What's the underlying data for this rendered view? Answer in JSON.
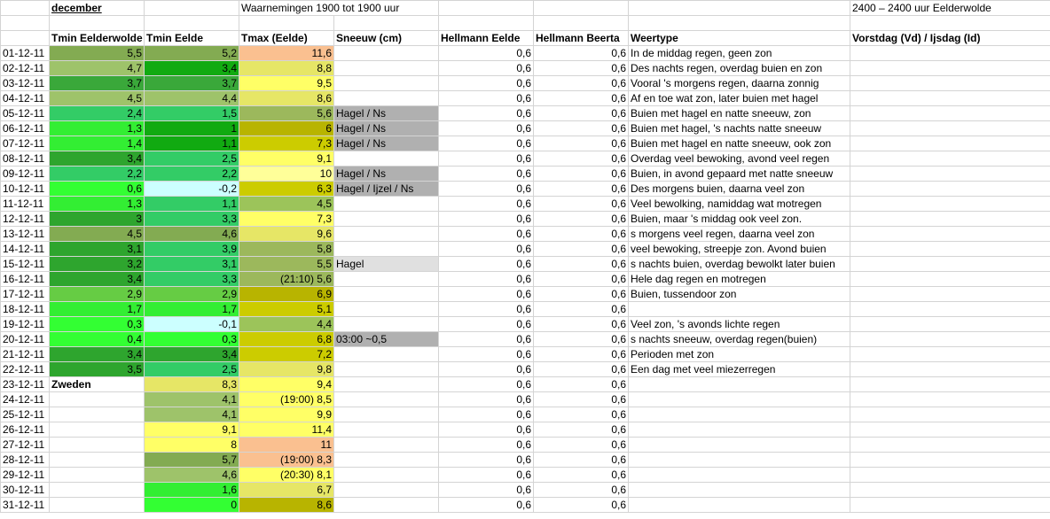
{
  "header": {
    "month": "december",
    "range": "Waarnemingen 1900 tot 1900 uur",
    "range_right": "2400 – 2400 uur Eelderwolde"
  },
  "table": {
    "columns": [
      "Tmin Eelderwolde",
      "Tmin Eelde",
      "Tmax (Eelde)",
      "Sneeuw (cm)",
      "Hellmann Eelde",
      "Hellmann Beerta",
      "Weertype",
      "Vorstdag (Vd) / Ijsdag (Id)"
    ],
    "rows": [
      {
        "date": "01-12-11",
        "tmin_eelderwolde": "5,5",
        "tmin_eelde": "5,2",
        "tmax": "11,6",
        "hellmann_eelde": "0,6",
        "hellmann_beerta": "0,6",
        "weertype": "In de middag regen, geen zon"
      },
      {
        "date": "02-12-11",
        "tmin_eelderwolde": "4,7",
        "tmin_eelde": "3,4",
        "tmax": "8,8",
        "hellmann_eelde": "0,6",
        "hellmann_beerta": "0,6",
        "weertype": "Des nachts regen, overdag buien en zon"
      },
      {
        "date": "03-12-11",
        "tmin_eelderwolde": "3,7",
        "tmin_eelde": "3,7",
        "tmax": "9,5",
        "hellmann_eelde": "0,6",
        "hellmann_beerta": "0,6",
        "weertype": "Vooral 's morgens regen, daarna zonnig"
      },
      {
        "date": "04-12-11",
        "tmin_eelderwolde": "4,5",
        "tmin_eelde": "4,4",
        "tmax": "8,6",
        "hellmann_eelde": "0,6",
        "hellmann_beerta": "0,6",
        "weertype": "Af en toe wat zon, later buien met hagel"
      },
      {
        "date": "05-12-11",
        "tmin_eelderwolde": "2,4",
        "tmin_eelde": "1,5",
        "tmax": "5,6",
        "sneeuw": "Hagel / Ns",
        "hellmann_eelde": "0,6",
        "hellmann_beerta": "0,6",
        "weertype": "Buien met hagel en natte sneeuw, zon"
      },
      {
        "date": "06-12-11",
        "tmin_eelderwolde": "1,3",
        "tmin_eelde": "1",
        "tmax": "6",
        "sneeuw": "Hagel / Ns",
        "hellmann_eelde": "0,6",
        "hellmann_beerta": "0,6",
        "weertype": "Buien met hagel, 's nachts natte sneeuw"
      },
      {
        "date": "07-12-11",
        "tmin_eelderwolde": "1,4",
        "tmin_eelde": "1,1",
        "tmax": "7,3",
        "sneeuw": "Hagel / Ns",
        "hellmann_eelde": "0,6",
        "hellmann_beerta": "0,6",
        "weertype": "Buien met hagel en natte sneeuw, ook zon"
      },
      {
        "date": "08-12-11",
        "tmin_eelderwolde": "3,4",
        "tmin_eelde": "2,5",
        "tmax": "9,1",
        "hellmann_eelde": "0,6",
        "hellmann_beerta": "0,6",
        "weertype": "Overdag veel bewoking, avond veel regen"
      },
      {
        "date": "09-12-11",
        "tmin_eelderwolde": "2,2",
        "tmin_eelde": "2,2",
        "tmax": "10",
        "sneeuw": "Hagel / Ns",
        "hellmann_eelde": "0,6",
        "hellmann_beerta": "0,6",
        "weertype": "Buien, in avond gepaard met natte sneeuw"
      },
      {
        "date": "10-12-11",
        "tmin_eelderwolde": "0,6",
        "tmin_eelde": "-0,2",
        "tmax": "6,3",
        "sneeuw": "Hagel / Ijzel / Ns",
        "hellmann_eelde": "0,6",
        "hellmann_beerta": "0,6",
        "weertype": "Des morgens buien, daarna veel zon"
      },
      {
        "date": "11-12-11",
        "tmin_eelderwolde": "1,3",
        "tmin_eelde": "1,1",
        "tmax": "4,5",
        "hellmann_eelde": "0,6",
        "hellmann_beerta": "0,6",
        "weertype": "Veel bewolking, namiddag wat motregen"
      },
      {
        "date": "12-12-11",
        "tmin_eelderwolde": "3",
        "tmin_eelde": "3,3",
        "tmax": "7,3",
        "hellmann_eelde": "0,6",
        "hellmann_beerta": "0,6",
        "weertype": "Buien, maar 's middag ook veel zon."
      },
      {
        "date": "13-12-11",
        "tmin_eelderwolde": "4,5",
        "tmin_eelde": "4,6",
        "tmax": "9,6",
        "hellmann_eelde": "0,6",
        "hellmann_beerta": "0,6",
        "weertype": "s morgens veel regen, daarna veel zon"
      },
      {
        "date": "14-12-11",
        "tmin_eelderwolde": "3,1",
        "tmin_eelde": "3,9",
        "tmax": "5,8",
        "hellmann_eelde": "0,6",
        "hellmann_beerta": "0,6",
        "weertype": "veel bewoking, streepje zon. Avond buien"
      },
      {
        "date": "15-12-11",
        "tmin_eelderwolde": "3,2",
        "tmin_eelde": "3,1",
        "tmax": "5,5",
        "sneeuw": "Hagel",
        "hellmann_eelde": "0,6",
        "hellmann_beerta": "0,6",
        "weertype": "s nachts buien, overdag bewolkt later buien"
      },
      {
        "date": "16-12-11",
        "tmin_eelderwolde": "3,4",
        "tmin_eelde": "3,3",
        "tmax": "(21:10) 5,6",
        "hellmann_eelde": "0,6",
        "hellmann_beerta": "0,6",
        "weertype": "Hele dag regen en motregen"
      },
      {
        "date": "17-12-11",
        "tmin_eelderwolde": "2,9",
        "tmin_eelde": "2,9",
        "tmax": "6,9",
        "hellmann_eelde": "0,6",
        "hellmann_beerta": "0,6",
        "weertype": "Buien, tussendoor zon"
      },
      {
        "date": "18-12-11",
        "tmin_eelderwolde": "1,7",
        "tmin_eelde": "1,7",
        "tmax": "5,1",
        "hellmann_eelde": "0,6",
        "hellmann_beerta": "0,6"
      },
      {
        "date": "19-12-11",
        "tmin_eelderwolde": "0,3",
        "tmin_eelde": "-0,1",
        "tmax": "4,4",
        "hellmann_eelde": "0,6",
        "hellmann_beerta": "0,6",
        "weertype": "Veel zon, 's avonds lichte regen"
      },
      {
        "date": "20-12-11",
        "tmin_eelderwolde": "0,4",
        "tmin_eelde": "0,3",
        "tmax": "6,8",
        "sneeuw": "03:00 ~0,5",
        "hellmann_eelde": "0,6",
        "hellmann_beerta": "0,6",
        "weertype": "s nachts sneeuw, overdag regen(buien)"
      },
      {
        "date": "21-12-11",
        "tmin_eelderwolde": "3,4",
        "tmin_eelde": "3,4",
        "tmax": "7,2",
        "hellmann_eelde": "0,6",
        "hellmann_beerta": "0,6",
        "weertype": "Perioden met zon"
      },
      {
        "date": "22-12-11",
        "tmin_eelderwolde": "3,5",
        "tmin_eelde": "2,5",
        "tmax": "9,8",
        "hellmann_eelde": "0,6",
        "hellmann_beerta": "0,6",
        "weertype": "Een dag met veel miezerregen"
      },
      {
        "date": "23-12-11",
        "tmin_eelderwolde": "Zweden",
        "tmin_eelde": "8,3",
        "tmax": "9,4",
        "hellmann_eelde": "0,6",
        "hellmann_beerta": "0,6"
      },
      {
        "date": "24-12-11",
        "tmin_eelde": "4,1",
        "tmax": "(19:00) 8,5",
        "hellmann_eelde": "0,6",
        "hellmann_beerta": "0,6"
      },
      {
        "date": "25-12-11",
        "tmin_eelde": "4,1",
        "tmax": "9,9",
        "hellmann_eelde": "0,6",
        "hellmann_beerta": "0,6"
      },
      {
        "date": "26-12-11",
        "tmin_eelde": "9,1",
        "tmax": "11,4",
        "hellmann_eelde": "0,6",
        "hellmann_beerta": "0,6"
      },
      {
        "date": "27-12-11",
        "tmin_eelde": "8",
        "tmax": "11",
        "hellmann_eelde": "0,6",
        "hellmann_beerta": "0,6"
      },
      {
        "date": "28-12-11",
        "tmin_eelde": "5,7",
        "tmax": "(19:00) 8,3",
        "hellmann_eelde": "0,6",
        "hellmann_beerta": "0,6"
      },
      {
        "date": "29-12-11",
        "tmin_eelde": "4,6",
        "tmax": "(20:30) 8,1",
        "hellmann_eelde": "0,6",
        "hellmann_beerta": "0,6"
      },
      {
        "date": "30-12-11",
        "tmin_eelde": "1,6",
        "tmax": "6,7",
        "hellmann_eelde": "0,6",
        "hellmann_beerta": "0,6"
      },
      {
        "date": "31-12-11",
        "tmin_eelde": "0",
        "tmax": "8,6",
        "hellmann_eelde": "0,6",
        "hellmann_beerta": "0,6"
      }
    ]
  }
}
